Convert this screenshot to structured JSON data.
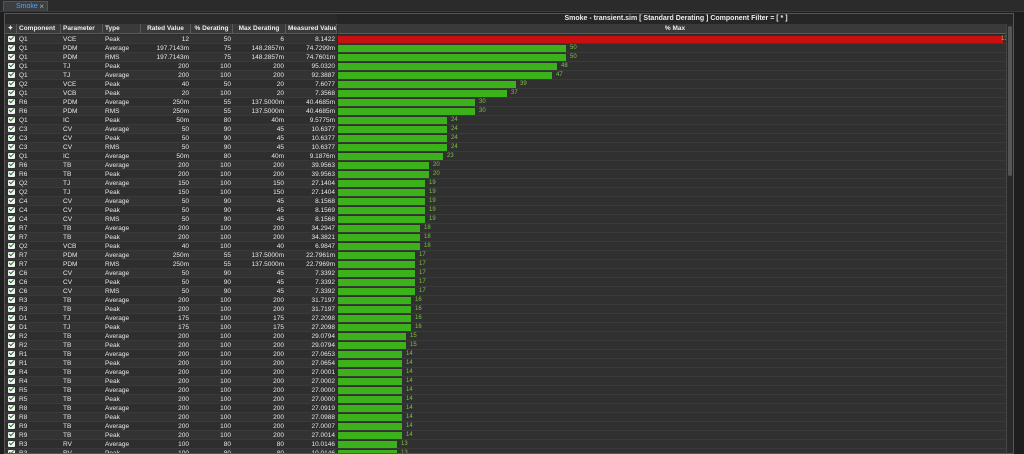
{
  "tab": {
    "label": "Smoke",
    "close": "×"
  },
  "title": "Smoke - transient.sim  [ Standard Derating ] Component Filter = [ * ]",
  "headers": {
    "check": "✦",
    "component": "Component",
    "parameter": "Parameter",
    "type": "Type",
    "rated": "Rated Value",
    "derating": "% Derating",
    "max": "Max Derating",
    "measured": "Measured Value",
    "pctmax": "% Max"
  },
  "colors": {
    "over": "#c81010",
    "ok": "#3cb21a"
  },
  "rows": [
    {
      "c": "Q1",
      "p": "VCE",
      "t": "Peak",
      "r": "12",
      "d": "50",
      "m": "6",
      "v": "8.1422",
      "pct": 136
    },
    {
      "c": "Q1",
      "p": "PDM",
      "t": "Average",
      "r": "197.7143m",
      "d": "75",
      "m": "148.2857m",
      "v": "74.7299m",
      "pct": 50
    },
    {
      "c": "Q1",
      "p": "PDM",
      "t": "RMS",
      "r": "197.7143m",
      "d": "75",
      "m": "148.2857m",
      "v": "74.7601m",
      "pct": 50
    },
    {
      "c": "Q1",
      "p": "TJ",
      "t": "Peak",
      "r": "200",
      "d": "100",
      "m": "200",
      "v": "95.0320",
      "pct": 48
    },
    {
      "c": "Q1",
      "p": "TJ",
      "t": "Average",
      "r": "200",
      "d": "100",
      "m": "200",
      "v": "92.3887",
      "pct": 47
    },
    {
      "c": "Q2",
      "p": "VCE",
      "t": "Peak",
      "r": "40",
      "d": "50",
      "m": "20",
      "v": "7.6077",
      "pct": 39
    },
    {
      "c": "Q1",
      "p": "VCB",
      "t": "Peak",
      "r": "20",
      "d": "100",
      "m": "20",
      "v": "7.3568",
      "pct": 37
    },
    {
      "c": "R6",
      "p": "PDM",
      "t": "Average",
      "r": "250m",
      "d": "55",
      "m": "137.5000m",
      "v": "40.4685m",
      "pct": 30
    },
    {
      "c": "R6",
      "p": "PDM",
      "t": "RMS",
      "r": "250m",
      "d": "55",
      "m": "137.5000m",
      "v": "40.4685m",
      "pct": 30
    },
    {
      "c": "Q1",
      "p": "IC",
      "t": "Peak",
      "r": "50m",
      "d": "80",
      "m": "40m",
      "v": "9.5775m",
      "pct": 24
    },
    {
      "c": "C3",
      "p": "CV",
      "t": "Average",
      "r": "50",
      "d": "90",
      "m": "45",
      "v": "10.6377",
      "pct": 24
    },
    {
      "c": "C3",
      "p": "CV",
      "t": "Peak",
      "r": "50",
      "d": "90",
      "m": "45",
      "v": "10.6377",
      "pct": 24
    },
    {
      "c": "C3",
      "p": "CV",
      "t": "RMS",
      "r": "50",
      "d": "90",
      "m": "45",
      "v": "10.6377",
      "pct": 24
    },
    {
      "c": "Q1",
      "p": "IC",
      "t": "Average",
      "r": "50m",
      "d": "80",
      "m": "40m",
      "v": "9.1876m",
      "pct": 23
    },
    {
      "c": "R6",
      "p": "TB",
      "t": "Average",
      "r": "200",
      "d": "100",
      "m": "200",
      "v": "39.9563",
      "pct": 20
    },
    {
      "c": "R6",
      "p": "TB",
      "t": "Peak",
      "r": "200",
      "d": "100",
      "m": "200",
      "v": "39.9563",
      "pct": 20
    },
    {
      "c": "Q2",
      "p": "TJ",
      "t": "Average",
      "r": "150",
      "d": "100",
      "m": "150",
      "v": "27.1404",
      "pct": 19
    },
    {
      "c": "Q2",
      "p": "TJ",
      "t": "Peak",
      "r": "150",
      "d": "100",
      "m": "150",
      "v": "27.1404",
      "pct": 19
    },
    {
      "c": "C4",
      "p": "CV",
      "t": "Average",
      "r": "50",
      "d": "90",
      "m": "45",
      "v": "8.1568",
      "pct": 19
    },
    {
      "c": "C4",
      "p": "CV",
      "t": "Peak",
      "r": "50",
      "d": "90",
      "m": "45",
      "v": "8.1569",
      "pct": 19
    },
    {
      "c": "C4",
      "p": "CV",
      "t": "RMS",
      "r": "50",
      "d": "90",
      "m": "45",
      "v": "8.1568",
      "pct": 19
    },
    {
      "c": "R7",
      "p": "TB",
      "t": "Average",
      "r": "200",
      "d": "100",
      "m": "200",
      "v": "34.2947",
      "pct": 18
    },
    {
      "c": "R7",
      "p": "TB",
      "t": "Peak",
      "r": "200",
      "d": "100",
      "m": "200",
      "v": "34.3821",
      "pct": 18
    },
    {
      "c": "Q2",
      "p": "VCB",
      "t": "Peak",
      "r": "40",
      "d": "100",
      "m": "40",
      "v": "6.9847",
      "pct": 18
    },
    {
      "c": "R7",
      "p": "PDM",
      "t": "Average",
      "r": "250m",
      "d": "55",
      "m": "137.5000m",
      "v": "22.7961m",
      "pct": 17
    },
    {
      "c": "R7",
      "p": "PDM",
      "t": "RMS",
      "r": "250m",
      "d": "55",
      "m": "137.5000m",
      "v": "22.7969m",
      "pct": 17
    },
    {
      "c": "C6",
      "p": "CV",
      "t": "Average",
      "r": "50",
      "d": "90",
      "m": "45",
      "v": "7.3392",
      "pct": 17
    },
    {
      "c": "C6",
      "p": "CV",
      "t": "Peak",
      "r": "50",
      "d": "90",
      "m": "45",
      "v": "7.3392",
      "pct": 17
    },
    {
      "c": "C6",
      "p": "CV",
      "t": "RMS",
      "r": "50",
      "d": "90",
      "m": "45",
      "v": "7.3392",
      "pct": 17
    },
    {
      "c": "R3",
      "p": "TB",
      "t": "Average",
      "r": "200",
      "d": "100",
      "m": "200",
      "v": "31.7197",
      "pct": 16
    },
    {
      "c": "R3",
      "p": "TB",
      "t": "Peak",
      "r": "200",
      "d": "100",
      "m": "200",
      "v": "31.7197",
      "pct": 16
    },
    {
      "c": "D1",
      "p": "TJ",
      "t": "Average",
      "r": "175",
      "d": "100",
      "m": "175",
      "v": "27.2098",
      "pct": 16
    },
    {
      "c": "D1",
      "p": "TJ",
      "t": "Peak",
      "r": "175",
      "d": "100",
      "m": "175",
      "v": "27.2098",
      "pct": 16
    },
    {
      "c": "R2",
      "p": "TB",
      "t": "Average",
      "r": "200",
      "d": "100",
      "m": "200",
      "v": "29.0794",
      "pct": 15
    },
    {
      "c": "R2",
      "p": "TB",
      "t": "Peak",
      "r": "200",
      "d": "100",
      "m": "200",
      "v": "29.0794",
      "pct": 15
    },
    {
      "c": "R1",
      "p": "TB",
      "t": "Average",
      "r": "200",
      "d": "100",
      "m": "200",
      "v": "27.0653",
      "pct": 14
    },
    {
      "c": "R1",
      "p": "TB",
      "t": "Peak",
      "r": "200",
      "d": "100",
      "m": "200",
      "v": "27.0654",
      "pct": 14
    },
    {
      "c": "R4",
      "p": "TB",
      "t": "Average",
      "r": "200",
      "d": "100",
      "m": "200",
      "v": "27.0001",
      "pct": 14
    },
    {
      "c": "R4",
      "p": "TB",
      "t": "Peak",
      "r": "200",
      "d": "100",
      "m": "200",
      "v": "27.0002",
      "pct": 14
    },
    {
      "c": "R5",
      "p": "TB",
      "t": "Average",
      "r": "200",
      "d": "100",
      "m": "200",
      "v": "27.0000",
      "pct": 14
    },
    {
      "c": "R5",
      "p": "TB",
      "t": "Peak",
      "r": "200",
      "d": "100",
      "m": "200",
      "v": "27.0000",
      "pct": 14
    },
    {
      "c": "R8",
      "p": "TB",
      "t": "Average",
      "r": "200",
      "d": "100",
      "m": "200",
      "v": "27.0919",
      "pct": 14
    },
    {
      "c": "R8",
      "p": "TB",
      "t": "Peak",
      "r": "200",
      "d": "100",
      "m": "200",
      "v": "27.0988",
      "pct": 14
    },
    {
      "c": "R9",
      "p": "TB",
      "t": "Average",
      "r": "200",
      "d": "100",
      "m": "200",
      "v": "27.0007",
      "pct": 14
    },
    {
      "c": "R9",
      "p": "TB",
      "t": "Peak",
      "r": "200",
      "d": "100",
      "m": "200",
      "v": "27.0014",
      "pct": 14
    },
    {
      "c": "R3",
      "p": "RV",
      "t": "Average",
      "r": "100",
      "d": "80",
      "m": "80",
      "v": "10.0146",
      "pct": 13
    },
    {
      "c": "R3",
      "p": "RV",
      "t": "Peak",
      "r": "100",
      "d": "80",
      "m": "80",
      "v": "10.0146",
      "pct": 13
    },
    {
      "c": "R3",
      "p": "RV",
      "t": "RMS",
      "r": "100",
      "d": "80",
      "m": "80",
      "v": "10.0146",
      "pct": 13
    },
    {
      "c": "R3",
      "p": "PDM",
      "t": "Average",
      "r": "250m",
      "d": "55",
      "m": "137.5000m",
      "v": "14.7489m",
      "pct": 11
    }
  ]
}
